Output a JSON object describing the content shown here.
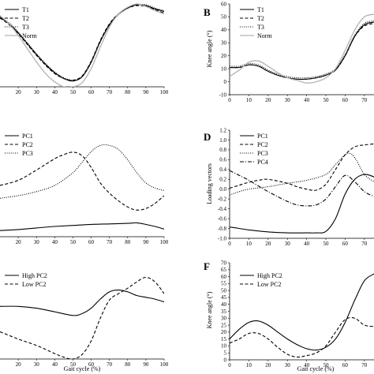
{
  "chart_data": [
    {
      "panel": "A",
      "type": "line",
      "panel_letter": "",
      "xlabel": "",
      "ylabel": "",
      "xlim": [
        10,
        100
      ],
      "ylim": [
        0,
        1
      ],
      "x_ticks": [
        20,
        30,
        40,
        50,
        60,
        70,
        80,
        90,
        100
      ],
      "y_ticks": [],
      "legend": "top-left",
      "series": [
        {
          "name": "T1",
          "style": "solid",
          "color": "#000000",
          "x": [
            10,
            15,
            20,
            25,
            30,
            35,
            40,
            45,
            50,
            55,
            60,
            65,
            70,
            75,
            80,
            85,
            90,
            95,
            100
          ],
          "y": [
            0.84,
            0.76,
            0.65,
            0.52,
            0.39,
            0.27,
            0.17,
            0.1,
            0.07,
            0.12,
            0.3,
            0.55,
            0.75,
            0.88,
            0.95,
            0.99,
            0.98,
            0.94,
            0.91
          ]
        },
        {
          "name": "T2",
          "style": "dashed",
          "color": "#000000",
          "x": [
            10,
            15,
            20,
            25,
            30,
            35,
            40,
            45,
            50,
            55,
            60,
            65,
            70,
            75,
            80,
            85,
            90,
            95,
            100
          ],
          "y": [
            0.83,
            0.75,
            0.64,
            0.51,
            0.38,
            0.26,
            0.16,
            0.1,
            0.08,
            0.13,
            0.31,
            0.56,
            0.76,
            0.88,
            0.95,
            0.98,
            0.97,
            0.93,
            0.89
          ]
        },
        {
          "name": "T3",
          "style": "dotted",
          "color": "#000000",
          "x": [
            10,
            15,
            20,
            25,
            30,
            35,
            40,
            45,
            50,
            55,
            60,
            65,
            70,
            75,
            80,
            85,
            90,
            95,
            100
          ],
          "y": [
            0.85,
            0.77,
            0.66,
            0.53,
            0.4,
            0.28,
            0.18,
            0.11,
            0.08,
            0.12,
            0.29,
            0.54,
            0.74,
            0.87,
            0.95,
            0.99,
            0.99,
            0.95,
            0.92
          ]
        },
        {
          "name": "Norm",
          "style": "solid",
          "color": "#b3b3b3",
          "x": [
            10,
            15,
            20,
            25,
            30,
            35,
            40,
            45,
            50,
            55,
            60,
            65,
            70,
            75,
            80,
            85,
            90,
            95,
            100
          ],
          "y": [
            0.86,
            0.76,
            0.62,
            0.46,
            0.3,
            0.16,
            0.06,
            0.0,
            0.0,
            0.05,
            0.22,
            0.48,
            0.72,
            0.88,
            0.96,
            1.0,
            0.97,
            0.92,
            0.88
          ]
        }
      ]
    },
    {
      "panel": "B",
      "type": "line",
      "panel_letter": "B",
      "xlabel": "",
      "ylabel": "Knee angle (°)",
      "xlim": [
        0,
        75
      ],
      "ylim": [
        -10,
        60
      ],
      "x_ticks": [
        0,
        10,
        20,
        30,
        40,
        50,
        60,
        70
      ],
      "y_ticks": [
        -10,
        0,
        10,
        20,
        30,
        40,
        50,
        60
      ],
      "legend": "top-left",
      "series": [
        {
          "name": "T1",
          "style": "solid",
          "color": "#000000",
          "x": [
            0,
            5,
            10,
            15,
            20,
            25,
            30,
            35,
            40,
            45,
            50,
            55,
            60,
            65,
            70,
            75
          ],
          "y": [
            11,
            11,
            13,
            12,
            8,
            5,
            3,
            2,
            2,
            3,
            5,
            9,
            20,
            35,
            44,
            46
          ]
        },
        {
          "name": "T2",
          "style": "dashed",
          "color": "#000000",
          "x": [
            0,
            5,
            10,
            15,
            20,
            25,
            30,
            35,
            40,
            45,
            50,
            55,
            60,
            65,
            70,
            75
          ],
          "y": [
            11,
            11,
            13,
            12,
            8,
            5,
            3,
            2,
            2,
            3,
            5,
            9,
            20,
            35,
            43,
            45
          ]
        },
        {
          "name": "T3",
          "style": "dotted",
          "color": "#000000",
          "x": [
            0,
            5,
            10,
            15,
            20,
            25,
            30,
            35,
            40,
            45,
            50,
            55,
            60,
            65,
            70,
            75
          ],
          "y": [
            12,
            12,
            14,
            13,
            9,
            6,
            4,
            3,
            3,
            4,
            6,
            10,
            21,
            36,
            45,
            47
          ]
        },
        {
          "name": "Norm",
          "style": "solid",
          "color": "#b3b3b3",
          "x": [
            0,
            5,
            10,
            15,
            20,
            25,
            30,
            35,
            40,
            45,
            50,
            55,
            60,
            65,
            70,
            75
          ],
          "y": [
            4,
            9,
            15,
            16,
            12,
            7,
            3,
            1,
            -1,
            0,
            3,
            10,
            24,
            40,
            50,
            52
          ]
        }
      ]
    },
    {
      "panel": "C",
      "type": "line",
      "panel_letter": "",
      "xlabel": "",
      "ylabel": "",
      "xlim": [
        10,
        100
      ],
      "ylim": [
        -1,
        1
      ],
      "x_ticks": [
        20,
        30,
        40,
        50,
        60,
        70,
        80,
        90,
        100
      ],
      "y_ticks": [],
      "legend": "top-left",
      "series": [
        {
          "name": "PC1",
          "style": "solid",
          "color": "#000000",
          "x": [
            10,
            20,
            30,
            40,
            50,
            60,
            70,
            80,
            85,
            90,
            95,
            100
          ],
          "y": [
            -0.88,
            -0.86,
            -0.83,
            -0.8,
            -0.78,
            -0.76,
            -0.75,
            -0.74,
            -0.73,
            -0.76,
            -0.8,
            -0.85
          ]
        },
        {
          "name": "PC2",
          "style": "dashed",
          "color": "#000000",
          "x": [
            10,
            20,
            30,
            40,
            45,
            50,
            55,
            60,
            65,
            70,
            75,
            80,
            85,
            90,
            95,
            100
          ],
          "y": [
            0.0,
            0.1,
            0.3,
            0.52,
            0.6,
            0.65,
            0.58,
            0.35,
            0.05,
            -0.15,
            -0.3,
            -0.42,
            -0.48,
            -0.45,
            -0.35,
            -0.2
          ]
        },
        {
          "name": "PC3",
          "style": "dotted",
          "color": "#000000",
          "x": [
            10,
            20,
            30,
            40,
            50,
            55,
            60,
            65,
            70,
            75,
            80,
            85,
            90,
            95,
            100
          ],
          "y": [
            -0.25,
            -0.2,
            -0.12,
            0.0,
            0.25,
            0.45,
            0.66,
            0.78,
            0.78,
            0.7,
            0.5,
            0.25,
            0.05,
            -0.05,
            -0.1
          ]
        }
      ]
    },
    {
      "panel": "D",
      "type": "line",
      "panel_letter": "D",
      "xlabel": "",
      "ylabel": "Loading vectors",
      "xlim": [
        0,
        75
      ],
      "ylim": [
        -1.0,
        1.2
      ],
      "x_ticks": [
        0,
        10,
        20,
        30,
        40,
        50,
        60,
        70
      ],
      "y_ticks": [
        -1.0,
        -0.8,
        -0.6,
        -0.4,
        -0.2,
        0.0,
        0.2,
        0.4,
        0.6,
        0.8,
        1.0,
        1.2
      ],
      "legend": "top-left",
      "series": [
        {
          "name": "PC1",
          "style": "solid",
          "color": "#000000",
          "x": [
            0,
            5,
            10,
            20,
            30,
            40,
            45,
            50,
            55,
            60,
            65,
            70,
            75
          ],
          "y": [
            -0.77,
            -0.8,
            -0.83,
            -0.87,
            -0.89,
            -0.89,
            -0.89,
            -0.86,
            -0.6,
            -0.1,
            0.2,
            0.3,
            0.25
          ]
        },
        {
          "name": "PC2",
          "style": "dashed",
          "color": "#000000",
          "x": [
            0,
            5,
            10,
            15,
            20,
            30,
            35,
            40,
            45,
            50,
            55,
            60,
            65,
            70,
            75
          ],
          "y": [
            0.02,
            0.08,
            0.14,
            0.18,
            0.2,
            0.12,
            0.05,
            0.0,
            -0.02,
            0.1,
            0.4,
            0.7,
            0.86,
            0.9,
            0.92
          ]
        },
        {
          "name": "PC3",
          "style": "dotted",
          "color": "#000000",
          "x": [
            0,
            5,
            10,
            20,
            30,
            40,
            50,
            55,
            60,
            63,
            66,
            70,
            75
          ],
          "y": [
            -0.12,
            -0.05,
            0.0,
            0.05,
            0.12,
            0.18,
            0.3,
            0.5,
            0.7,
            0.72,
            0.58,
            0.3,
            0.15
          ]
        },
        {
          "name": "PC4",
          "style": "dashdot",
          "color": "#000000",
          "x": [
            0,
            5,
            10,
            20,
            30,
            35,
            40,
            45,
            50,
            55,
            60,
            65,
            70,
            75
          ],
          "y": [
            0.38,
            0.28,
            0.18,
            -0.05,
            -0.25,
            -0.32,
            -0.34,
            -0.32,
            -0.2,
            0.05,
            0.28,
            0.15,
            -0.05,
            -0.15
          ]
        }
      ]
    },
    {
      "panel": "E",
      "type": "line",
      "panel_letter": "",
      "xlabel": "Gait cycle (%)",
      "ylabel": "",
      "xlim": [
        10,
        100
      ],
      "ylim": [
        0,
        1
      ],
      "x_ticks": [
        20,
        30,
        40,
        50,
        60,
        70,
        80,
        90,
        100
      ],
      "y_ticks": [],
      "legend": "top-left",
      "series": [
        {
          "name": "High PC2",
          "style": "solid",
          "color": "#000000",
          "x": [
            10,
            20,
            30,
            40,
            50,
            55,
            60,
            65,
            70,
            75,
            80,
            85,
            90,
            95,
            100
          ],
          "y": [
            0.58,
            0.58,
            0.56,
            0.52,
            0.48,
            0.5,
            0.56,
            0.66,
            0.74,
            0.76,
            0.74,
            0.7,
            0.68,
            0.66,
            0.63
          ]
        },
        {
          "name": "Low PC2",
          "style": "dashed",
          "color": "#000000",
          "x": [
            10,
            20,
            30,
            40,
            45,
            50,
            55,
            60,
            65,
            70,
            75,
            80,
            85,
            90,
            95,
            100
          ],
          "y": [
            0.3,
            0.22,
            0.15,
            0.06,
            0.02,
            0.0,
            0.05,
            0.2,
            0.45,
            0.65,
            0.72,
            0.78,
            0.85,
            0.9,
            0.85,
            0.72
          ]
        }
      ]
    },
    {
      "panel": "F",
      "type": "line",
      "panel_letter": "F",
      "xlabel": "Gait cycle (%)",
      "ylabel": "Knee angle (°)",
      "xlim": [
        0,
        75
      ],
      "ylim": [
        0,
        70
      ],
      "x_ticks": [
        0,
        10,
        20,
        30,
        40,
        50,
        60,
        70
      ],
      "y_ticks": [
        0,
        5,
        10,
        15,
        20,
        25,
        30,
        35,
        40,
        45,
        50,
        55,
        60,
        65,
        70
      ],
      "legend": "top-left",
      "series": [
        {
          "name": "High PC2",
          "style": "solid",
          "color": "#000000",
          "x": [
            0,
            5,
            10,
            15,
            20,
            25,
            30,
            35,
            40,
            45,
            50,
            55,
            60,
            65,
            70,
            75
          ],
          "y": [
            15,
            22,
            27,
            28,
            25,
            20,
            15,
            11,
            8,
            7,
            9,
            15,
            27,
            43,
            57,
            62
          ]
        },
        {
          "name": "Low PC2",
          "style": "dashed",
          "color": "#000000",
          "x": [
            0,
            5,
            10,
            15,
            20,
            25,
            30,
            35,
            40,
            45,
            50,
            55,
            60,
            65,
            70,
            75
          ],
          "y": [
            12,
            15,
            19,
            19,
            15,
            9,
            4,
            2,
            3,
            5,
            10,
            20,
            29,
            30,
            25,
            24
          ]
        }
      ]
    }
  ]
}
